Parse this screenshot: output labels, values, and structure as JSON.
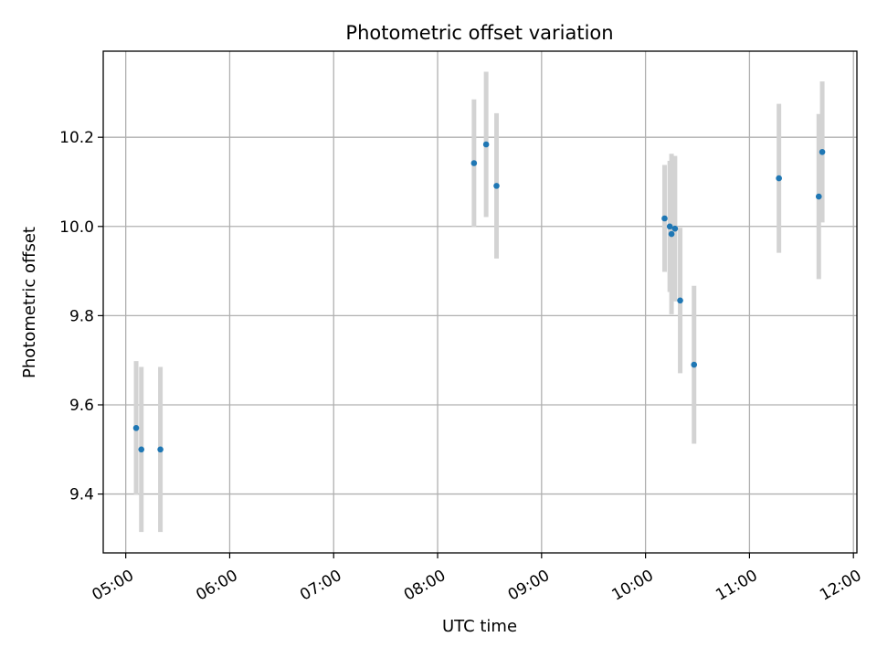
{
  "chart_data": {
    "type": "scatter",
    "title": "Photometric offset variation",
    "xlabel": "UTC time",
    "ylabel": "Photometric offset",
    "x_unit": "hours (UTC)",
    "xlim": [
      "04:47",
      "12:02"
    ],
    "ylim": [
      9.268,
      10.393
    ],
    "x_ticks": [
      "05:00",
      "06:00",
      "07:00",
      "08:00",
      "09:00",
      "10:00",
      "11:00",
      "12:00"
    ],
    "y_ticks": [
      "9.4",
      "9.6",
      "9.8",
      "10.0",
      "10.2"
    ],
    "grid": true,
    "point_color": "#1f77b4",
    "errorbar_color": "#d3d3d3",
    "points": [
      {
        "time": "05:06",
        "y": 9.548,
        "err": 0.15
      },
      {
        "time": "05:09",
        "y": 9.5,
        "err": 0.185
      },
      {
        "time": "05:20",
        "y": 9.5,
        "err": 0.185
      },
      {
        "time": "08:21",
        "y": 10.142,
        "err": 0.143
      },
      {
        "time": "08:28",
        "y": 10.184,
        "err": 0.163
      },
      {
        "time": "08:34",
        "y": 10.091,
        "err": 0.163
      },
      {
        "time": "10:11",
        "y": 10.018,
        "err": 0.12
      },
      {
        "time": "10:14",
        "y": 10.0,
        "err": 0.147
      },
      {
        "time": "10:15",
        "y": 9.983,
        "err": 0.18
      },
      {
        "time": "10:17",
        "y": 9.995,
        "err": 0.163
      },
      {
        "time": "10:20",
        "y": 9.834,
        "err": 0.163
      },
      {
        "time": "10:28",
        "y": 9.69,
        "err": 0.177
      },
      {
        "time": "11:17",
        "y": 10.108,
        "err": 0.167
      },
      {
        "time": "11:40",
        "y": 10.067,
        "err": 0.185
      },
      {
        "time": "11:42",
        "y": 10.167,
        "err": 0.158
      }
    ]
  }
}
